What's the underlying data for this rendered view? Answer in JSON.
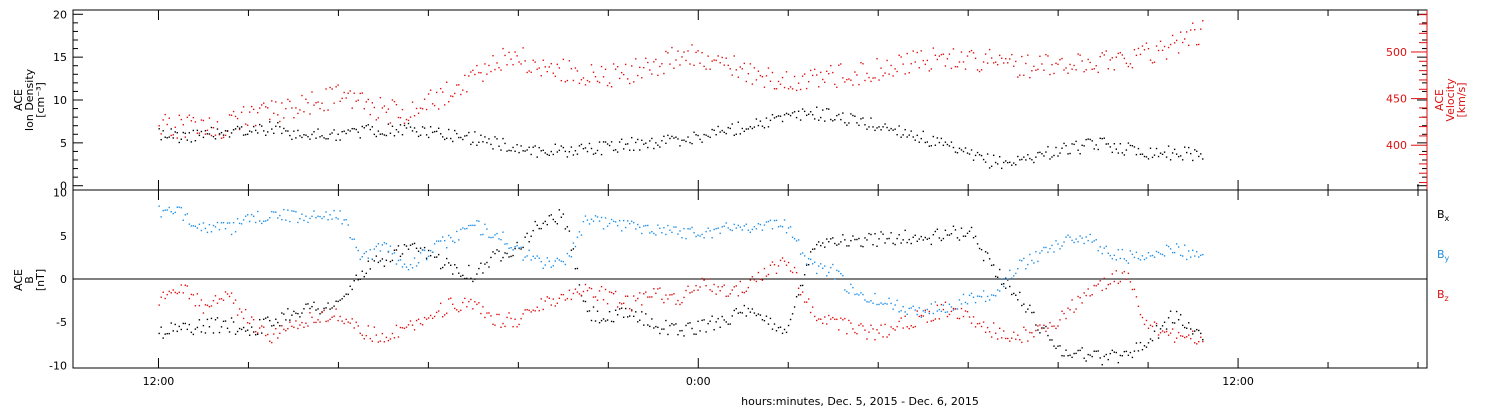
{
  "chart_data": [
    {
      "type": "scatter",
      "panel": "top",
      "left_axis": {
        "label_lines": [
          "ACE",
          "Ion Density",
          "[cm⁻³]"
        ],
        "ticks": [
          0,
          5,
          10,
          15,
          20
        ],
        "ylim": [
          -0.5,
          20.5
        ],
        "color": "#000000"
      },
      "right_axis": {
        "label_lines": [
          "ACE",
          "Velocity",
          "[km/s]"
        ],
        "ticks": [
          400,
          450,
          500
        ],
        "ylim": [
          352,
          545
        ],
        "color": "#dd1111"
      },
      "series": [
        {
          "name": "Ion Density",
          "axis": "left",
          "color": "#000000",
          "points": [
            [
              -12,
              6.2
            ],
            [
              -11.5,
              5.8
            ],
            [
              -11,
              6.0
            ],
            [
              -10.5,
              6.5
            ],
            [
              -10,
              6.3
            ],
            [
              -9.5,
              6.8
            ],
            [
              -9,
              6.2
            ],
            [
              -8.5,
              5.9
            ],
            [
              -8,
              6.1
            ],
            [
              -7.5,
              6.4
            ],
            [
              -7,
              6.6
            ],
            [
              -6.5,
              6.7
            ],
            [
              -6,
              6.3
            ],
            [
              -5.5,
              6.0
            ],
            [
              -5,
              5.6
            ],
            [
              -4.5,
              5.0
            ],
            [
              -4,
              4.4
            ],
            [
              -3.5,
              4.1
            ],
            [
              -3,
              4.2
            ],
            [
              -2.5,
              4.3
            ],
            [
              -2,
              4.6
            ],
            [
              -1.5,
              4.9
            ],
            [
              -1,
              5.1
            ],
            [
              -0.5,
              5.4
            ],
            [
              0,
              5.8
            ],
            [
              0.5,
              6.4
            ],
            [
              1,
              7.0
            ],
            [
              1.5,
              7.6
            ],
            [
              2,
              8.0
            ],
            [
              2.5,
              8.6
            ],
            [
              3,
              8.2
            ],
            [
              3.5,
              7.6
            ],
            [
              4,
              7.0
            ],
            [
              4.5,
              6.5
            ],
            [
              5,
              5.6
            ],
            [
              5.5,
              4.6
            ],
            [
              6,
              3.6
            ],
            [
              6.5,
              2.9
            ],
            [
              7,
              2.8
            ],
            [
              7.5,
              3.6
            ],
            [
              8,
              4.2
            ],
            [
              8.5,
              4.6
            ],
            [
              9,
              5.0
            ],
            [
              9.5,
              4.4
            ],
            [
              10,
              4.0
            ],
            [
              10.5,
              3.9
            ],
            [
              11,
              3.8
            ],
            [
              11.2,
              3.7
            ]
          ]
        },
        {
          "name": "Velocity",
          "axis": "right",
          "color": "#dd1111",
          "points": [
            [
              -12,
              423
            ],
            [
              -11.5,
              421
            ],
            [
              -11,
              418
            ],
            [
              -10.5,
              421
            ],
            [
              -10,
              432
            ],
            [
              -9.5,
              436
            ],
            [
              -9,
              442
            ],
            [
              -8.5,
              448
            ],
            [
              -8,
              453
            ],
            [
              -7.5,
              446
            ],
            [
              -7,
              438
            ],
            [
              -6.5,
              436
            ],
            [
              -6,
              446
            ],
            [
              -5.5,
              458
            ],
            [
              -5,
              472
            ],
            [
              -4.5,
              491
            ],
            [
              -4,
              494
            ],
            [
              -3.5,
              487
            ],
            [
              -3,
              481
            ],
            [
              -2.5,
              478
            ],
            [
              -2,
              476
            ],
            [
              -1.5,
              480
            ],
            [
              -1,
              487
            ],
            [
              -0.5,
              494
            ],
            [
              0,
              497
            ],
            [
              0.5,
              489
            ],
            [
              1,
              480
            ],
            [
              1.5,
              472
            ],
            [
              2,
              469
            ],
            [
              2.5,
              471
            ],
            [
              3,
              474
            ],
            [
              3.5,
              478
            ],
            [
              4,
              482
            ],
            [
              4.5,
              487
            ],
            [
              5,
              491
            ],
            [
              5.5,
              494
            ],
            [
              6,
              494
            ],
            [
              6.5,
              491
            ],
            [
              7,
              487
            ],
            [
              7.5,
              485
            ],
            [
              8,
              486
            ],
            [
              8.5,
              487
            ],
            [
              9,
              491
            ],
            [
              9.5,
              496
            ],
            [
              10,
              499
            ],
            [
              10.5,
              508
            ],
            [
              11,
              520
            ],
            [
              11.2,
              522
            ]
          ]
        }
      ]
    },
    {
      "type": "scatter",
      "panel": "bottom",
      "left_axis": {
        "label_lines": [
          "ACE",
          "B",
          "[nT]"
        ],
        "ticks": [
          -10,
          -5,
          0,
          5,
          10
        ],
        "ylim": [
          -10.3,
          10.3
        ],
        "color": "#000000"
      },
      "zero_line": true,
      "legend": {
        "placement": "right",
        "entries": [
          {
            "name": "B",
            "subscript": "x",
            "color": "#000000"
          },
          {
            "name": "B",
            "subscript": "y",
            "color": "#1f8fe6"
          },
          {
            "name": "B",
            "subscript": "z",
            "color": "#dd1111"
          }
        ]
      },
      "series": [
        {
          "name": "Bx",
          "color": "#000000",
          "points": [
            [
              -12,
              -6.0
            ],
            [
              -11.5,
              -5.6
            ],
            [
              -11,
              -5.4
            ],
            [
              -10.5,
              -5.2
            ],
            [
              -10,
              -5.8
            ],
            [
              -9.5,
              -5.0
            ],
            [
              -9,
              -3.6
            ],
            [
              -8.5,
              -3.2
            ],
            [
              -8,
              -3.0
            ],
            [
              -7.5,
              0.8
            ],
            [
              -7,
              2.4
            ],
            [
              -6.5,
              3.6
            ],
            [
              -6,
              2.8
            ],
            [
              -5.5,
              1.6
            ],
            [
              -5,
              0.6
            ],
            [
              -4.5,
              2.8
            ],
            [
              -4,
              4.0
            ],
            [
              -3.5,
              6.6
            ],
            [
              -3,
              7.4
            ],
            [
              -2.5,
              -3.8
            ],
            [
              -2,
              -4.6
            ],
            [
              -1.5,
              -3.8
            ],
            [
              -1,
              -5.2
            ],
            [
              -0.5,
              -5.8
            ],
            [
              0,
              -5.6
            ],
            [
              0.5,
              -4.6
            ],
            [
              1,
              -3.8
            ],
            [
              1.5,
              -4.8
            ],
            [
              2,
              -5.8
            ],
            [
              2.5,
              3.8
            ],
            [
              3,
              4.8
            ],
            [
              3.5,
              4.2
            ],
            [
              4,
              4.8
            ],
            [
              4.5,
              5.0
            ],
            [
              5,
              4.6
            ],
            [
              5.5,
              5.2
            ],
            [
              6,
              5.6
            ],
            [
              6.5,
              1.8
            ],
            [
              7,
              -1.4
            ],
            [
              7.5,
              -4.8
            ],
            [
              8,
              -8.0
            ],
            [
              8.5,
              -8.6
            ],
            [
              9,
              -9.0
            ],
            [
              9.5,
              -8.6
            ],
            [
              10,
              -7.2
            ],
            [
              10.5,
              -4.2
            ],
            [
              11,
              -5.8
            ],
            [
              11.2,
              -6.2
            ]
          ]
        },
        {
          "name": "By",
          "color": "#1f8fe6",
          "points": [
            [
              -12,
              7.8
            ],
            [
              -11.5,
              7.6
            ],
            [
              -11,
              6.2
            ],
            [
              -10.5,
              5.8
            ],
            [
              -10,
              6.8
            ],
            [
              -9.5,
              7.6
            ],
            [
              -9,
              7.2
            ],
            [
              -8.5,
              7.4
            ],
            [
              -8,
              7.8
            ],
            [
              -7.5,
              2.6
            ],
            [
              -7,
              3.8
            ],
            [
              -6.5,
              1.6
            ],
            [
              -6,
              3.2
            ],
            [
              -5.5,
              4.8
            ],
            [
              -5,
              6.2
            ],
            [
              -4.5,
              5.4
            ],
            [
              -4,
              3.2
            ],
            [
              -3.5,
              2.0
            ],
            [
              -3,
              1.8
            ],
            [
              -2.5,
              6.8
            ],
            [
              -2,
              6.6
            ],
            [
              -1.5,
              6.2
            ],
            [
              -1,
              6.0
            ],
            [
              -0.5,
              5.6
            ],
            [
              0,
              5.4
            ],
            [
              0.5,
              5.8
            ],
            [
              1,
              6.2
            ],
            [
              1.5,
              6.4
            ],
            [
              2,
              6.2
            ],
            [
              2.5,
              1.4
            ],
            [
              3,
              1.0
            ],
            [
              3.5,
              -2.0
            ],
            [
              4,
              -2.4
            ],
            [
              4.5,
              -3.2
            ],
            [
              5,
              -3.6
            ],
            [
              5.5,
              -3.0
            ],
            [
              6,
              -2.2
            ],
            [
              6.5,
              -1.6
            ],
            [
              7,
              1.0
            ],
            [
              7.5,
              2.8
            ],
            [
              8,
              4.2
            ],
            [
              8.5,
              5.0
            ],
            [
              9,
              3.6
            ],
            [
              9.5,
              2.6
            ],
            [
              10,
              2.4
            ],
            [
              10.5,
              3.8
            ],
            [
              11,
              2.8
            ],
            [
              11.2,
              3.6
            ]
          ]
        },
        {
          "name": "Bz",
          "color": "#dd1111",
          "points": [
            [
              -12,
              -2.4
            ],
            [
              -11.5,
              -0.6
            ],
            [
              -11,
              -3.2
            ],
            [
              -10.5,
              -1.8
            ],
            [
              -10,
              -4.8
            ],
            [
              -9.5,
              -6.6
            ],
            [
              -9,
              -4.8
            ],
            [
              -8.5,
              -4.6
            ],
            [
              -8,
              -4.0
            ],
            [
              -7.5,
              -6.0
            ],
            [
              -7,
              -6.6
            ],
            [
              -6.5,
              -5.4
            ],
            [
              -6,
              -4.4
            ],
            [
              -5.5,
              -2.8
            ],
            [
              -5,
              -3.2
            ],
            [
              -4.5,
              -4.8
            ],
            [
              -4,
              -4.6
            ],
            [
              -3.5,
              -2.8
            ],
            [
              -3,
              -1.8
            ],
            [
              -2.5,
              -1.0
            ],
            [
              -2,
              -2.0
            ],
            [
              -1.5,
              -2.8
            ],
            [
              -1,
              -1.4
            ],
            [
              -0.5,
              -2.6
            ],
            [
              0,
              -0.4
            ],
            [
              0.5,
              -1.4
            ],
            [
              1,
              -1.0
            ],
            [
              1.5,
              1.2
            ],
            [
              2,
              2.0
            ],
            [
              2.5,
              -3.6
            ],
            [
              3,
              -4.8
            ],
            [
              3.5,
              -5.8
            ],
            [
              4,
              -6.2
            ],
            [
              4.5,
              -5.2
            ],
            [
              5,
              -4.2
            ],
            [
              5.5,
              -3.4
            ],
            [
              6,
              -4.4
            ],
            [
              6.5,
              -5.8
            ],
            [
              7,
              -6.6
            ],
            [
              7.5,
              -6.0
            ],
            [
              8,
              -4.8
            ],
            [
              8.5,
              -2.0
            ],
            [
              9,
              -0.4
            ],
            [
              9.5,
              0.8
            ],
            [
              10,
              -5.6
            ],
            [
              10.5,
              -6.4
            ],
            [
              11,
              -6.8
            ],
            [
              11.2,
              -6.6
            ]
          ]
        }
      ]
    }
  ],
  "x_axis": {
    "label": "hours:minutes, Dec.  5, 2015 - Dec.  6, 2015",
    "ticks": [
      {
        "hours": -12,
        "label": "12:00"
      },
      {
        "hours": 0,
        "label": "0:00"
      },
      {
        "hours": 12,
        "label": "12:00"
      }
    ],
    "xlim": [
      -13.9,
      16.2
    ],
    "minor_tick_hours": 2
  }
}
